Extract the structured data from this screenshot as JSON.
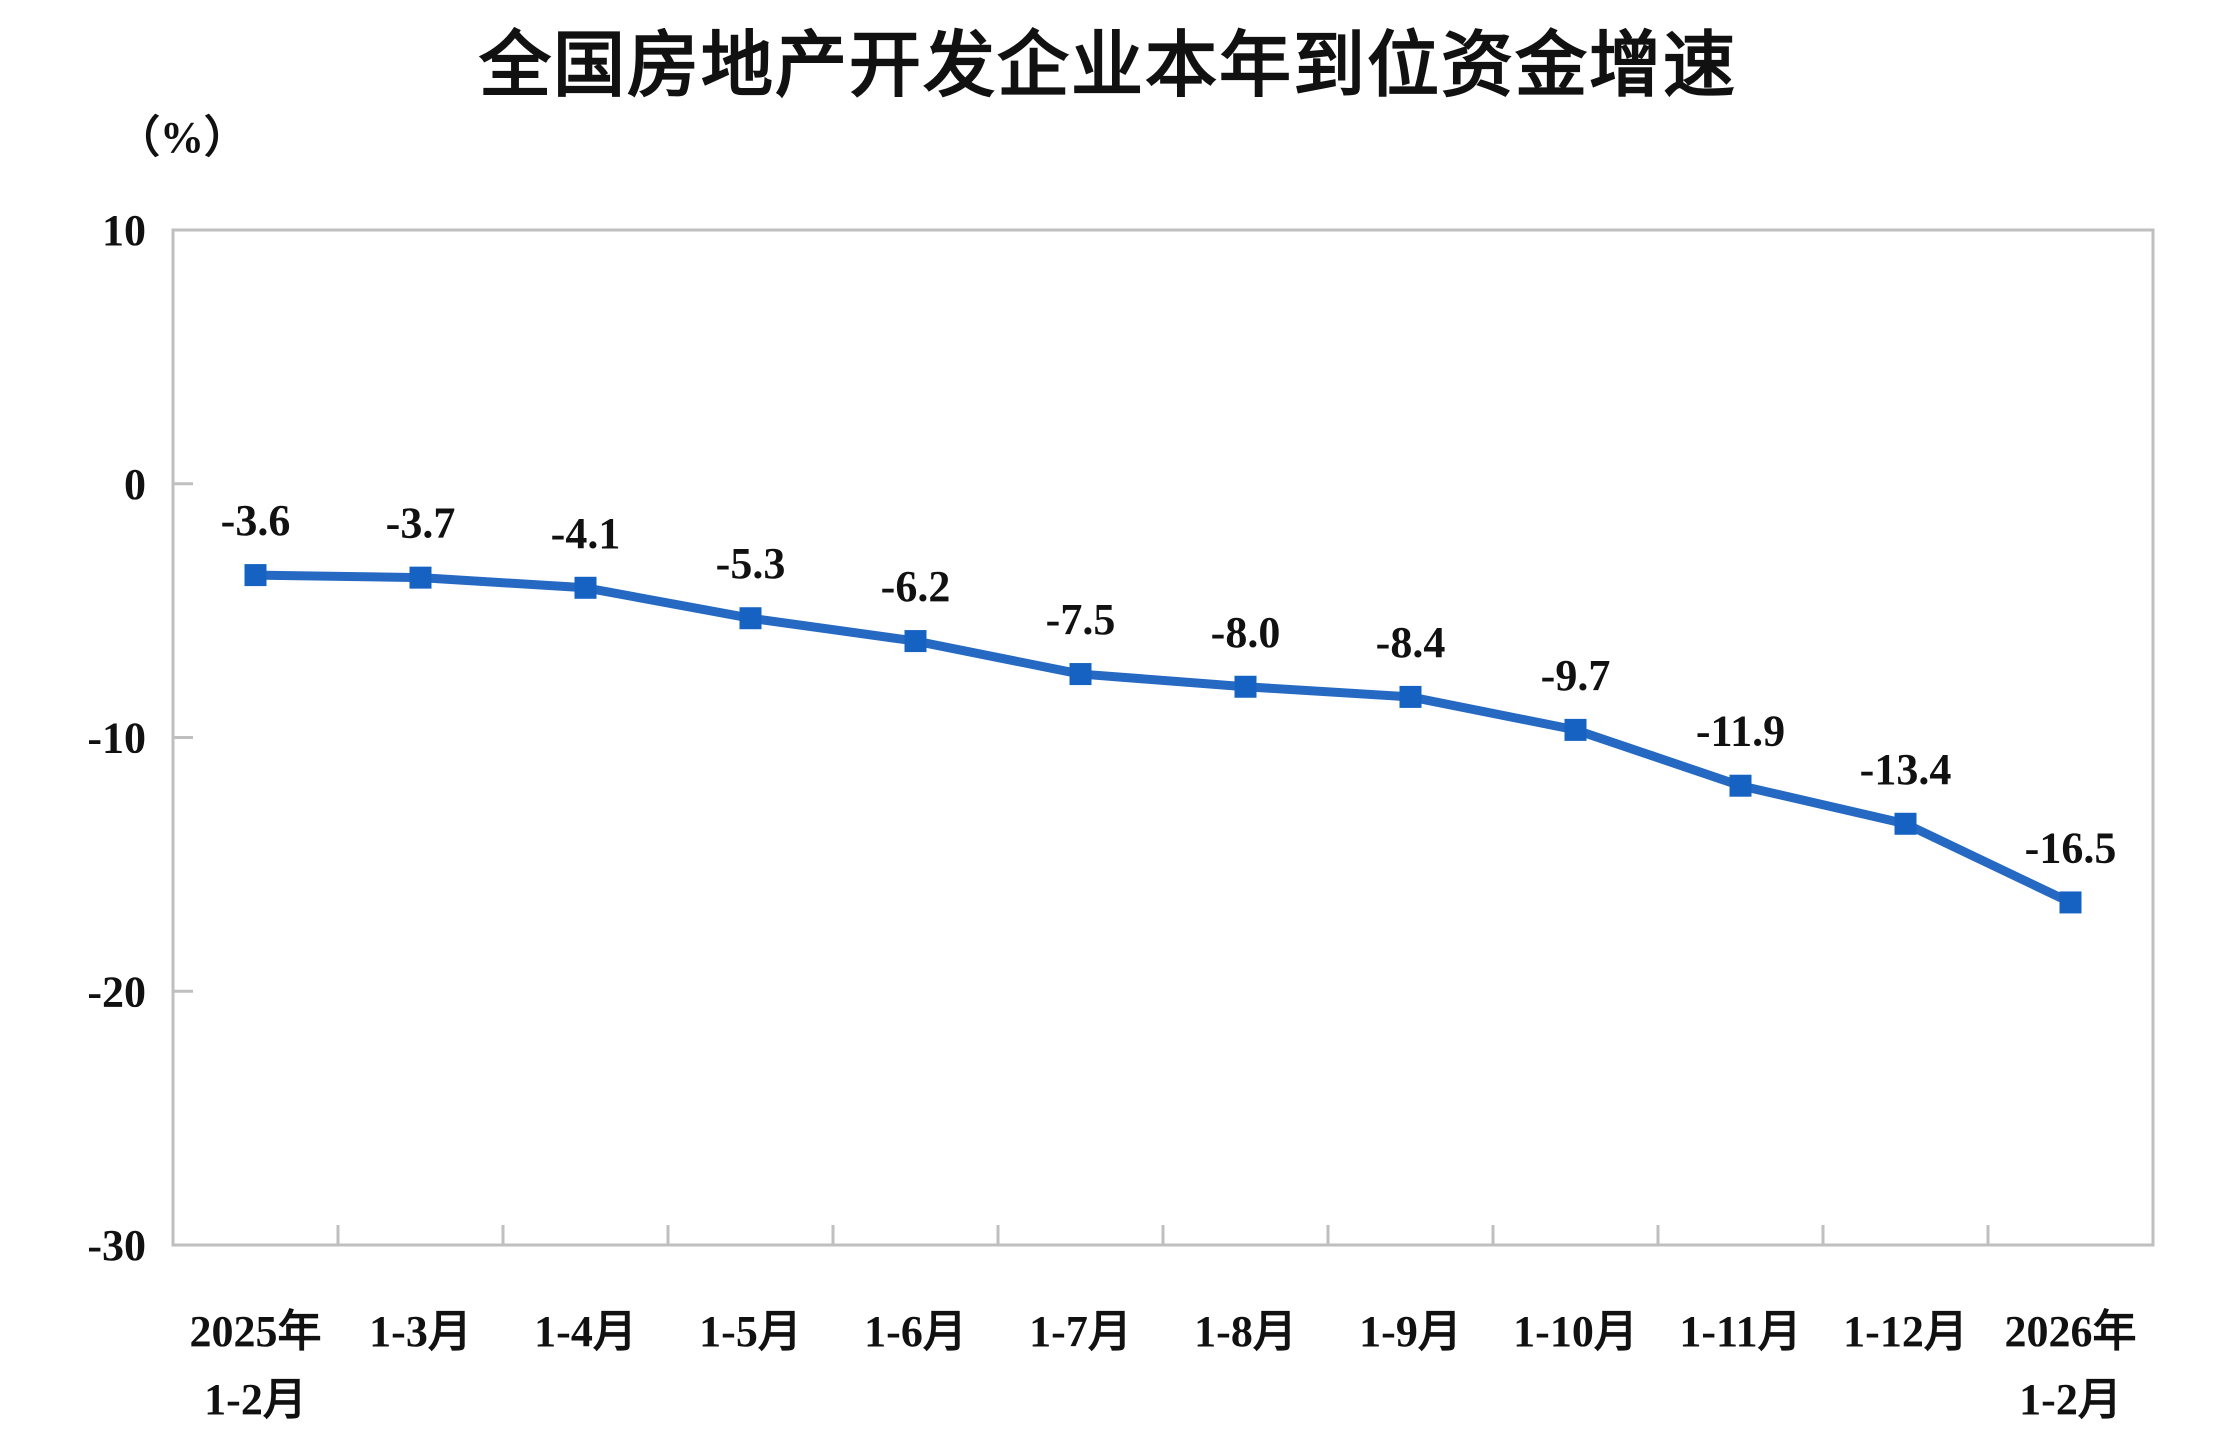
{
  "chart_data": {
    "type": "line",
    "title": "全国房地产开发企业本年到位资金增速",
    "unit_label": "（%）",
    "categories": [
      [
        "2025年",
        "1-2月"
      ],
      [
        "1-3月"
      ],
      [
        "1-4月"
      ],
      [
        "1-5月"
      ],
      [
        "1-6月"
      ],
      [
        "1-7月"
      ],
      [
        "1-8月"
      ],
      [
        "1-9月"
      ],
      [
        "1-10月"
      ],
      [
        "1-11月"
      ],
      [
        "1-12月"
      ],
      [
        "2026年",
        "1-2月"
      ]
    ],
    "values": [
      -3.6,
      -3.7,
      -4.1,
      -5.3,
      -6.2,
      -7.5,
      -8.0,
      -8.4,
      -9.7,
      -11.9,
      -13.4,
      -16.5
    ],
    "data_labels": [
      "-3.6",
      "-3.7",
      "-4.1",
      "-5.3",
      "-6.2",
      "-7.5",
      "-8.0",
      "-8.4",
      "-9.7",
      "-11.9",
      "-13.4",
      "-16.5"
    ],
    "xlabel": "",
    "ylabel": "",
    "ylim": [
      -30,
      10
    ],
    "yticks": [
      10,
      0,
      -10,
      -20,
      -30
    ],
    "grid": false,
    "legend": "none",
    "marker_style": "square",
    "colors": {
      "line": "#2569c3",
      "marker": "#1562c3",
      "axis": "#bfbfbf",
      "text": "#111111"
    }
  }
}
